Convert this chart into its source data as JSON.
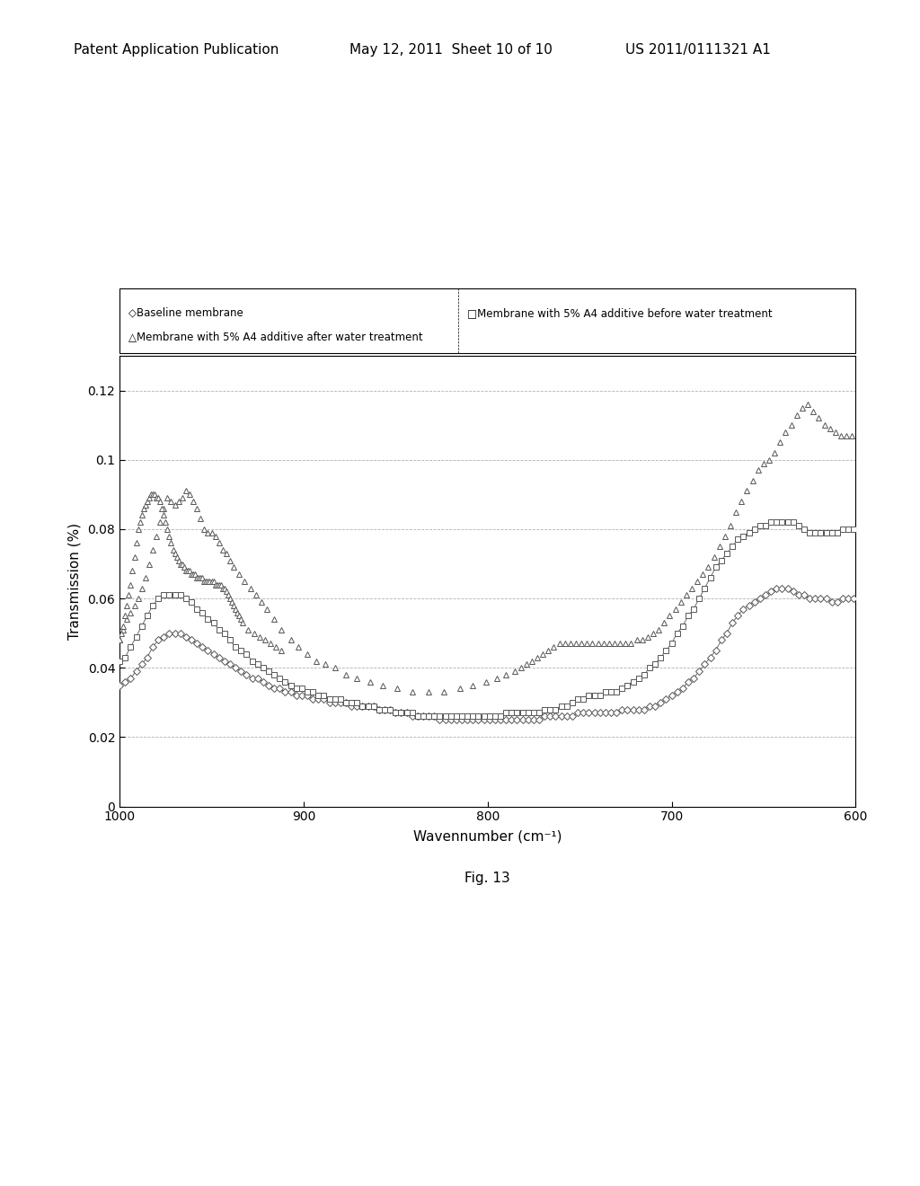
{
  "header_left": "Patent Application Publication",
  "header_mid": "May 12, 2011  Sheet 10 of 10",
  "header_right": "US 2011/0111321 A1",
  "fig_label": "Fig. 13",
  "xlabel": "Wavennumber (cm⁻¹)",
  "ylabel": "Transmission (%)",
  "xlim": [
    1000,
    600
  ],
  "ylim": [
    0,
    0.13
  ],
  "yticks": [
    0,
    0.02,
    0.04,
    0.06,
    0.08,
    0.1,
    0.12
  ],
  "xticks": [
    1000,
    900,
    800,
    700,
    600
  ],
  "legend_line1_left": "◇Baseline membrane",
  "legend_line1_right": "□Membrane with 5% A4 additive before water treatment",
  "legend_line2_left": "△Membrane with 5% A4 additive after water treatment",
  "series": {
    "baseline": {
      "color": "#444444",
      "marker": "D",
      "markersize": 4,
      "x": [
        1000,
        997,
        994,
        991,
        988,
        985,
        982,
        979,
        976,
        973,
        970,
        967,
        964,
        961,
        958,
        955,
        952,
        949,
        946,
        943,
        940,
        937,
        934,
        931,
        928,
        925,
        922,
        919,
        916,
        913,
        910,
        907,
        904,
        901,
        898,
        895,
        892,
        889,
        886,
        883,
        880,
        877,
        874,
        871,
        868,
        865,
        862,
        859,
        856,
        853,
        850,
        847,
        844,
        841,
        838,
        835,
        832,
        829,
        826,
        823,
        820,
        817,
        814,
        811,
        808,
        805,
        802,
        799,
        796,
        793,
        790,
        787,
        784,
        781,
        778,
        775,
        772,
        769,
        766,
        763,
        760,
        757,
        754,
        751,
        748,
        745,
        742,
        739,
        736,
        733,
        730,
        727,
        724,
        721,
        718,
        715,
        712,
        709,
        706,
        703,
        700,
        697,
        694,
        691,
        688,
        685,
        682,
        679,
        676,
        673,
        670,
        667,
        664,
        661,
        658,
        655,
        652,
        649,
        646,
        643,
        640,
        637,
        634,
        631,
        628,
        625,
        622,
        619,
        616,
        613,
        610,
        607,
        604,
        601
      ],
      "y": [
        0.035,
        0.036,
        0.037,
        0.039,
        0.041,
        0.043,
        0.046,
        0.048,
        0.049,
        0.05,
        0.05,
        0.05,
        0.049,
        0.048,
        0.047,
        0.046,
        0.045,
        0.044,
        0.043,
        0.042,
        0.041,
        0.04,
        0.039,
        0.038,
        0.037,
        0.037,
        0.036,
        0.035,
        0.034,
        0.034,
        0.033,
        0.033,
        0.032,
        0.032,
        0.032,
        0.031,
        0.031,
        0.031,
        0.03,
        0.03,
        0.03,
        0.03,
        0.029,
        0.029,
        0.029,
        0.029,
        0.029,
        0.028,
        0.028,
        0.028,
        0.027,
        0.027,
        0.027,
        0.026,
        0.026,
        0.026,
        0.026,
        0.026,
        0.025,
        0.025,
        0.025,
        0.025,
        0.025,
        0.025,
        0.025,
        0.025,
        0.025,
        0.025,
        0.025,
        0.025,
        0.025,
        0.025,
        0.025,
        0.025,
        0.025,
        0.025,
        0.025,
        0.026,
        0.026,
        0.026,
        0.026,
        0.026,
        0.026,
        0.027,
        0.027,
        0.027,
        0.027,
        0.027,
        0.027,
        0.027,
        0.027,
        0.028,
        0.028,
        0.028,
        0.028,
        0.028,
        0.029,
        0.029,
        0.03,
        0.031,
        0.032,
        0.033,
        0.034,
        0.036,
        0.037,
        0.039,
        0.041,
        0.043,
        0.045,
        0.048,
        0.05,
        0.053,
        0.055,
        0.057,
        0.058,
        0.059,
        0.06,
        0.061,
        0.062,
        0.063,
        0.063,
        0.063,
        0.062,
        0.061,
        0.061,
        0.06,
        0.06,
        0.06,
        0.06,
        0.059,
        0.059,
        0.06,
        0.06,
        0.06
      ]
    },
    "before": {
      "color": "#444444",
      "marker": "s",
      "markersize": 4,
      "x": [
        1000,
        997,
        994,
        991,
        988,
        985,
        982,
        979,
        976,
        973,
        970,
        967,
        964,
        961,
        958,
        955,
        952,
        949,
        946,
        943,
        940,
        937,
        934,
        931,
        928,
        925,
        922,
        919,
        916,
        913,
        910,
        907,
        904,
        901,
        898,
        895,
        892,
        889,
        886,
        883,
        880,
        877,
        874,
        871,
        868,
        865,
        862,
        859,
        856,
        853,
        850,
        847,
        844,
        841,
        838,
        835,
        832,
        829,
        826,
        823,
        820,
        817,
        814,
        811,
        808,
        805,
        802,
        799,
        796,
        793,
        790,
        787,
        784,
        781,
        778,
        775,
        772,
        769,
        766,
        763,
        760,
        757,
        754,
        751,
        748,
        745,
        742,
        739,
        736,
        733,
        730,
        727,
        724,
        721,
        718,
        715,
        712,
        709,
        706,
        703,
        700,
        697,
        694,
        691,
        688,
        685,
        682,
        679,
        676,
        673,
        670,
        667,
        664,
        661,
        658,
        655,
        652,
        649,
        646,
        643,
        640,
        637,
        634,
        631,
        628,
        625,
        622,
        619,
        616,
        613,
        610,
        607,
        604,
        601
      ],
      "y": [
        0.042,
        0.043,
        0.046,
        0.049,
        0.052,
        0.055,
        0.058,
        0.06,
        0.061,
        0.061,
        0.061,
        0.061,
        0.06,
        0.059,
        0.057,
        0.056,
        0.054,
        0.053,
        0.051,
        0.05,
        0.048,
        0.046,
        0.045,
        0.044,
        0.042,
        0.041,
        0.04,
        0.039,
        0.038,
        0.037,
        0.036,
        0.035,
        0.034,
        0.034,
        0.033,
        0.033,
        0.032,
        0.032,
        0.031,
        0.031,
        0.031,
        0.03,
        0.03,
        0.03,
        0.029,
        0.029,
        0.029,
        0.028,
        0.028,
        0.028,
        0.027,
        0.027,
        0.027,
        0.027,
        0.026,
        0.026,
        0.026,
        0.026,
        0.026,
        0.026,
        0.026,
        0.026,
        0.026,
        0.026,
        0.026,
        0.026,
        0.026,
        0.026,
        0.026,
        0.026,
        0.027,
        0.027,
        0.027,
        0.027,
        0.027,
        0.027,
        0.027,
        0.028,
        0.028,
        0.028,
        0.029,
        0.029,
        0.03,
        0.031,
        0.031,
        0.032,
        0.032,
        0.032,
        0.033,
        0.033,
        0.033,
        0.034,
        0.035,
        0.036,
        0.037,
        0.038,
        0.04,
        0.041,
        0.043,
        0.045,
        0.047,
        0.05,
        0.052,
        0.055,
        0.057,
        0.06,
        0.063,
        0.066,
        0.069,
        0.071,
        0.073,
        0.075,
        0.077,
        0.078,
        0.079,
        0.08,
        0.081,
        0.081,
        0.082,
        0.082,
        0.082,
        0.082,
        0.082,
        0.081,
        0.08,
        0.079,
        0.079,
        0.079,
        0.079,
        0.079,
        0.079,
        0.08,
        0.08,
        0.08
      ]
    },
    "after_x": [
      1000,
      998,
      996,
      994,
      992,
      990,
      988,
      986,
      984,
      982,
      980,
      978,
      976,
      974,
      972,
      970,
      968,
      966,
      964,
      962,
      960,
      958,
      956,
      954,
      952,
      950,
      948,
      946,
      944,
      942,
      940,
      938,
      935,
      932,
      929,
      926,
      923,
      920,
      916,
      912,
      907,
      903,
      898,
      893,
      888,
      883,
      877,
      871,
      864,
      857,
      849,
      841,
      832,
      824,
      815,
      808,
      801,
      795,
      790,
      785,
      782,
      779,
      776,
      773,
      770,
      767,
      764,
      761,
      758,
      755,
      752,
      749,
      746,
      743,
      740,
      737,
      734,
      731,
      728,
      725,
      722,
      719,
      716,
      713,
      710,
      707,
      704,
      701,
      698,
      695,
      692,
      689,
      686,
      683,
      680,
      677,
      674,
      671,
      668,
      665,
      662,
      659,
      656,
      653,
      650,
      647,
      644,
      641,
      638,
      635,
      632,
      629,
      626,
      623,
      620,
      617,
      614,
      611,
      608,
      605,
      602
    ],
    "after_y": [
      0.048,
      0.051,
      0.054,
      0.056,
      0.058,
      0.06,
      0.063,
      0.066,
      0.07,
      0.074,
      0.078,
      0.082,
      0.086,
      0.089,
      0.088,
      0.087,
      0.088,
      0.089,
      0.091,
      0.09,
      0.088,
      0.086,
      0.083,
      0.08,
      0.079,
      0.079,
      0.078,
      0.076,
      0.074,
      0.073,
      0.071,
      0.069,
      0.067,
      0.065,
      0.063,
      0.061,
      0.059,
      0.057,
      0.054,
      0.051,
      0.048,
      0.046,
      0.044,
      0.042,
      0.041,
      0.04,
      0.038,
      0.037,
      0.036,
      0.035,
      0.034,
      0.033,
      0.033,
      0.033,
      0.034,
      0.035,
      0.036,
      0.037,
      0.038,
      0.039,
      0.04,
      0.041,
      0.042,
      0.043,
      0.044,
      0.045,
      0.046,
      0.047,
      0.047,
      0.047,
      0.047,
      0.047,
      0.047,
      0.047,
      0.047,
      0.047,
      0.047,
      0.047,
      0.047,
      0.047,
      0.047,
      0.048,
      0.048,
      0.049,
      0.05,
      0.051,
      0.053,
      0.055,
      0.057,
      0.059,
      0.061,
      0.063,
      0.065,
      0.067,
      0.069,
      0.072,
      0.075,
      0.078,
      0.081,
      0.085,
      0.088,
      0.091,
      0.094,
      0.097,
      0.099,
      0.1,
      0.102,
      0.105,
      0.108,
      0.11,
      0.113,
      0.115,
      0.116,
      0.114,
      0.112,
      0.11,
      0.109,
      0.108,
      0.107,
      0.107,
      0.107
    ],
    "after_scatter_x": [
      1000,
      999,
      998,
      997,
      996,
      995,
      994,
      993,
      992,
      991,
      990,
      989,
      988,
      987,
      986,
      985,
      984,
      983,
      982,
      981,
      980,
      979,
      978,
      977,
      976,
      975,
      974,
      973,
      972,
      971,
      970,
      969,
      968,
      967,
      966,
      965,
      964,
      963,
      962,
      961,
      960,
      959,
      958,
      957,
      956,
      955,
      954,
      953,
      952,
      951,
      950,
      949,
      948,
      947,
      946,
      945,
      944,
      943,
      942,
      941,
      940,
      939,
      938,
      937,
      936,
      935,
      934,
      933,
      930,
      927,
      924,
      921,
      918,
      915,
      912
    ],
    "after_scatter_y": [
      0.048,
      0.05,
      0.052,
      0.055,
      0.058,
      0.061,
      0.064,
      0.068,
      0.072,
      0.076,
      0.08,
      0.082,
      0.084,
      0.086,
      0.087,
      0.088,
      0.089,
      0.09,
      0.09,
      0.09,
      0.089,
      0.089,
      0.088,
      0.086,
      0.084,
      0.082,
      0.08,
      0.078,
      0.076,
      0.074,
      0.073,
      0.072,
      0.071,
      0.07,
      0.07,
      0.069,
      0.068,
      0.068,
      0.068,
      0.067,
      0.067,
      0.067,
      0.066,
      0.066,
      0.066,
      0.066,
      0.065,
      0.065,
      0.065,
      0.065,
      0.065,
      0.065,
      0.064,
      0.064,
      0.064,
      0.064,
      0.063,
      0.063,
      0.062,
      0.061,
      0.06,
      0.059,
      0.058,
      0.057,
      0.056,
      0.055,
      0.054,
      0.053,
      0.051,
      0.05,
      0.049,
      0.048,
      0.047,
      0.046,
      0.045
    ]
  }
}
